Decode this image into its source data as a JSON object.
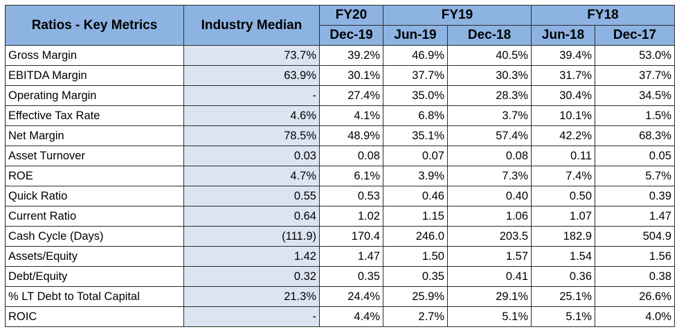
{
  "header": {
    "metric_label": "Ratios - Key Metrics",
    "median_label": "Industry Median",
    "fiscal_years": [
      "FY20",
      "FY19",
      "FY18"
    ],
    "periods": [
      "Dec-19",
      "Jun-19",
      "Dec-18",
      "Jun-18",
      "Dec-17"
    ]
  },
  "rows": [
    {
      "label": "Gross Margin",
      "median": "73.7%",
      "values": [
        "39.2%",
        "46.9%",
        "40.5%",
        "39.4%",
        "53.0%"
      ]
    },
    {
      "label": "EBITDA Margin",
      "median": "63.9%",
      "values": [
        "30.1%",
        "37.7%",
        "30.3%",
        "31.7%",
        "37.7%"
      ]
    },
    {
      "label": "Operating Margin",
      "median": "-",
      "values": [
        "27.4%",
        "35.0%",
        "28.3%",
        "30.4%",
        "34.5%"
      ]
    },
    {
      "label": "Effective Tax Rate",
      "median": "4.6%",
      "values": [
        "4.1%",
        "6.8%",
        "3.7%",
        "10.1%",
        "1.5%"
      ]
    },
    {
      "label": "Net Margin",
      "median": "78.5%",
      "values": [
        "48.9%",
        "35.1%",
        "57.4%",
        "42.2%",
        "68.3%"
      ]
    },
    {
      "label": "Asset Turnover",
      "median": "0.03",
      "values": [
        "0.08",
        "0.07",
        "0.08",
        "0.11",
        "0.05"
      ]
    },
    {
      "label": "ROE",
      "median": "4.7%",
      "values": [
        "6.1%",
        "3.9%",
        "7.3%",
        "7.4%",
        "5.7%"
      ]
    },
    {
      "label": "Quick Ratio",
      "median": "0.55",
      "values": [
        "0.53",
        "0.46",
        "0.40",
        "0.50",
        "0.39"
      ]
    },
    {
      "label": "Current Ratio",
      "median": "0.64",
      "values": [
        "1.02",
        "1.15",
        "1.06",
        "1.07",
        "1.47"
      ]
    },
    {
      "label": "Cash Cycle (Days)",
      "median": "(111.9)",
      "values": [
        "170.4",
        "246.0",
        "203.5",
        "182.9",
        "504.9"
      ]
    },
    {
      "label": "Assets/Equity",
      "median": "1.42",
      "values": [
        "1.47",
        "1.50",
        "1.57",
        "1.54",
        "1.56"
      ]
    },
    {
      "label": "Debt/Equity",
      "median": "0.32",
      "values": [
        "0.35",
        "0.35",
        "0.41",
        "0.36",
        "0.38"
      ]
    },
    {
      "label": "% LT Debt to Total Capital",
      "median": "21.3%",
      "values": [
        "24.4%",
        "25.9%",
        "29.1%",
        "25.1%",
        "26.6%"
      ]
    },
    {
      "label": "ROIC",
      "median": "-",
      "values": [
        "4.4%",
        "2.7%",
        "5.1%",
        "5.1%",
        "4.0%"
      ]
    }
  ],
  "colors": {
    "header_bg": "#8db3e2",
    "median_bg": "#dce4f2",
    "border": "#2b2b2b"
  }
}
